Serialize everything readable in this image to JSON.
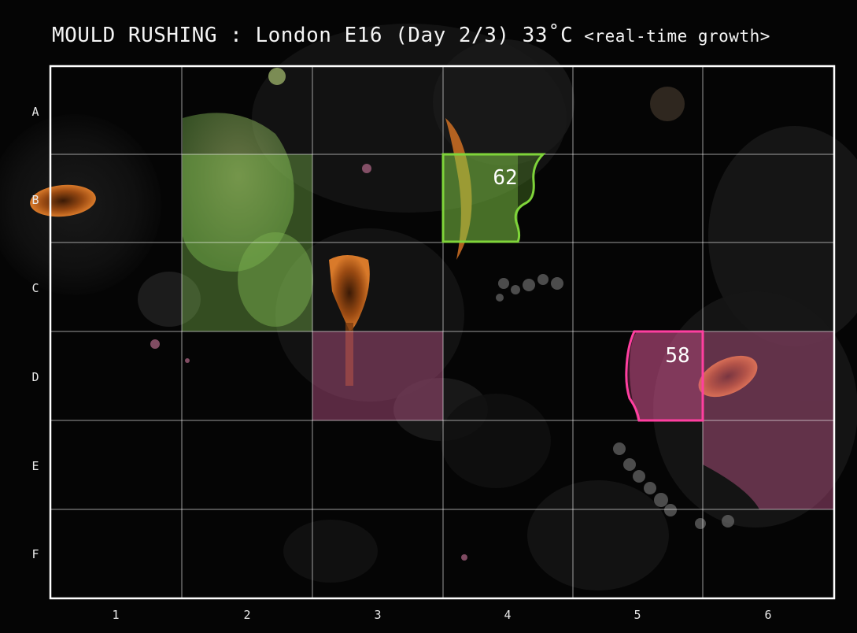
{
  "header": {
    "title": "MOULD RUSHING : London E16 (Day 2/3) 33˚C",
    "subtitle": "<real-time growth>"
  },
  "grid": {
    "rows": [
      "A",
      "B",
      "C",
      "D",
      "E",
      "F"
    ],
    "columns": [
      "1",
      "2",
      "3",
      "4",
      "5",
      "6"
    ]
  },
  "claims": [
    {
      "id": "green",
      "label": "62",
      "color": "#7fd43a",
      "fill": "#7fd43a"
    },
    {
      "id": "pink",
      "label": "58",
      "color": "#ff3fa0",
      "fill": "#e0508f"
    }
  ],
  "colors": {
    "background": "#050505",
    "grid_line": "#ffffff",
    "territory_green": "#8cd456",
    "territory_pink": "#d8609a"
  }
}
